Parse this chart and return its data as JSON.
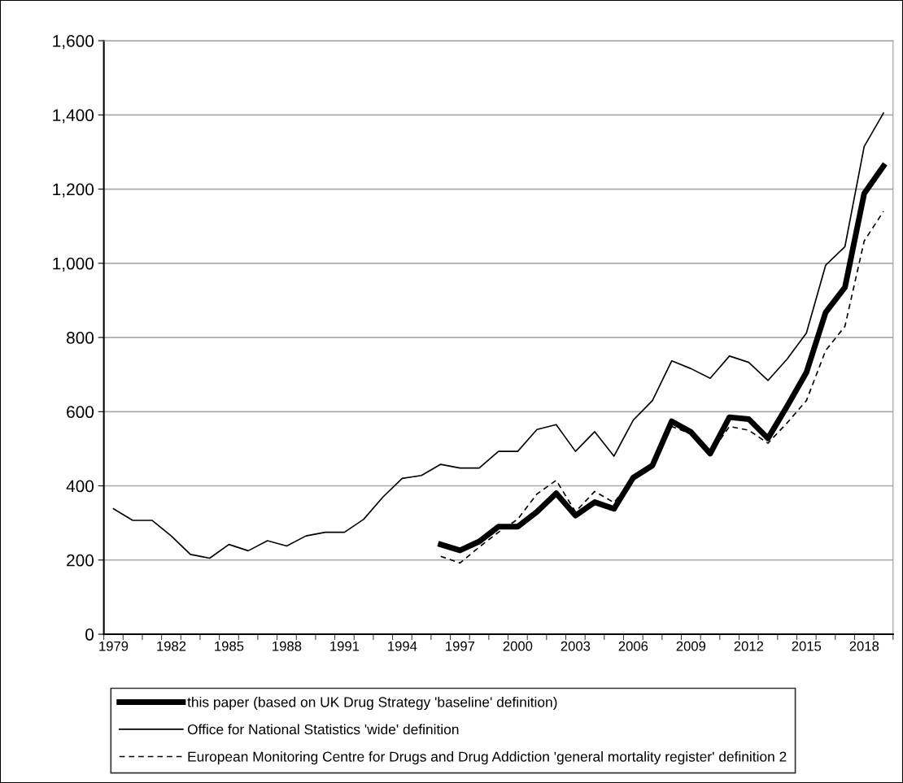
{
  "chart_data": {
    "type": "line",
    "categories": [
      "1979",
      null,
      null,
      "1982",
      null,
      null,
      "1985",
      null,
      null,
      "1988",
      null,
      null,
      "1991",
      null,
      null,
      "1994",
      null,
      null,
      "1997",
      null,
      null,
      "2000",
      null,
      null,
      "2003",
      null,
      null,
      "2006",
      null,
      null,
      "2009",
      null,
      null,
      "2012",
      null,
      null,
      "2015",
      null,
      null,
      "2018",
      null
    ],
    "series": [
      {
        "name": "this paper (based on UK Drug Strategy 'baseline' definition)",
        "color": "#000000",
        "line_style": "solid",
        "values": [
          null,
          null,
          null,
          null,
          null,
          null,
          null,
          null,
          null,
          null,
          null,
          null,
          null,
          null,
          null,
          null,
          null,
          242,
          226,
          250,
          290,
          290,
          330,
          380,
          320,
          356,
          338,
          422,
          455,
          574,
          545,
          487,
          585,
          580,
          528,
          615,
          706,
          868,
          935,
          1188,
          1262
        ]
      },
      {
        "name": "Office for National Statistics 'wide' definition",
        "color": "#000000",
        "line_style": "solid",
        "values": [
          338,
          307,
          307,
          265,
          215,
          205,
          242,
          225,
          252,
          238,
          265,
          275,
          275,
          310,
          370,
          420,
          428,
          458,
          448,
          448,
          493,
          493,
          552,
          565,
          493,
          546,
          480,
          577,
          630,
          737,
          716,
          690,
          750,
          733,
          684,
          742,
          812,
          995,
          1045,
          1315,
          1405
        ]
      },
      {
        "name": "European Monitoring Centre for Drugs and Drug Addiction 'general mortality register' definition 2",
        "color": "#000000",
        "line_style": "dashed",
        "values": [
          null,
          null,
          null,
          null,
          null,
          null,
          null,
          null,
          null,
          null,
          null,
          null,
          null,
          null,
          null,
          null,
          null,
          210,
          192,
          235,
          275,
          310,
          378,
          415,
          330,
          385,
          355,
          420,
          455,
          560,
          540,
          487,
          560,
          550,
          515,
          570,
          630,
          765,
          830,
          1060,
          1140
        ]
      }
    ],
    "ylim": [
      0,
      1600
    ],
    "yticks": [
      0,
      200,
      400,
      600,
      800,
      {
        "value": 1000,
        "label": "1,000"
      },
      {
        "value": 1200,
        "label": "1,200"
      },
      {
        "value": 1400,
        "label": "1,400"
      },
      {
        "value": 1600,
        "label": "1,600"
      }
    ],
    "grid": "y",
    "legend": "bottom",
    "marker": "none"
  }
}
